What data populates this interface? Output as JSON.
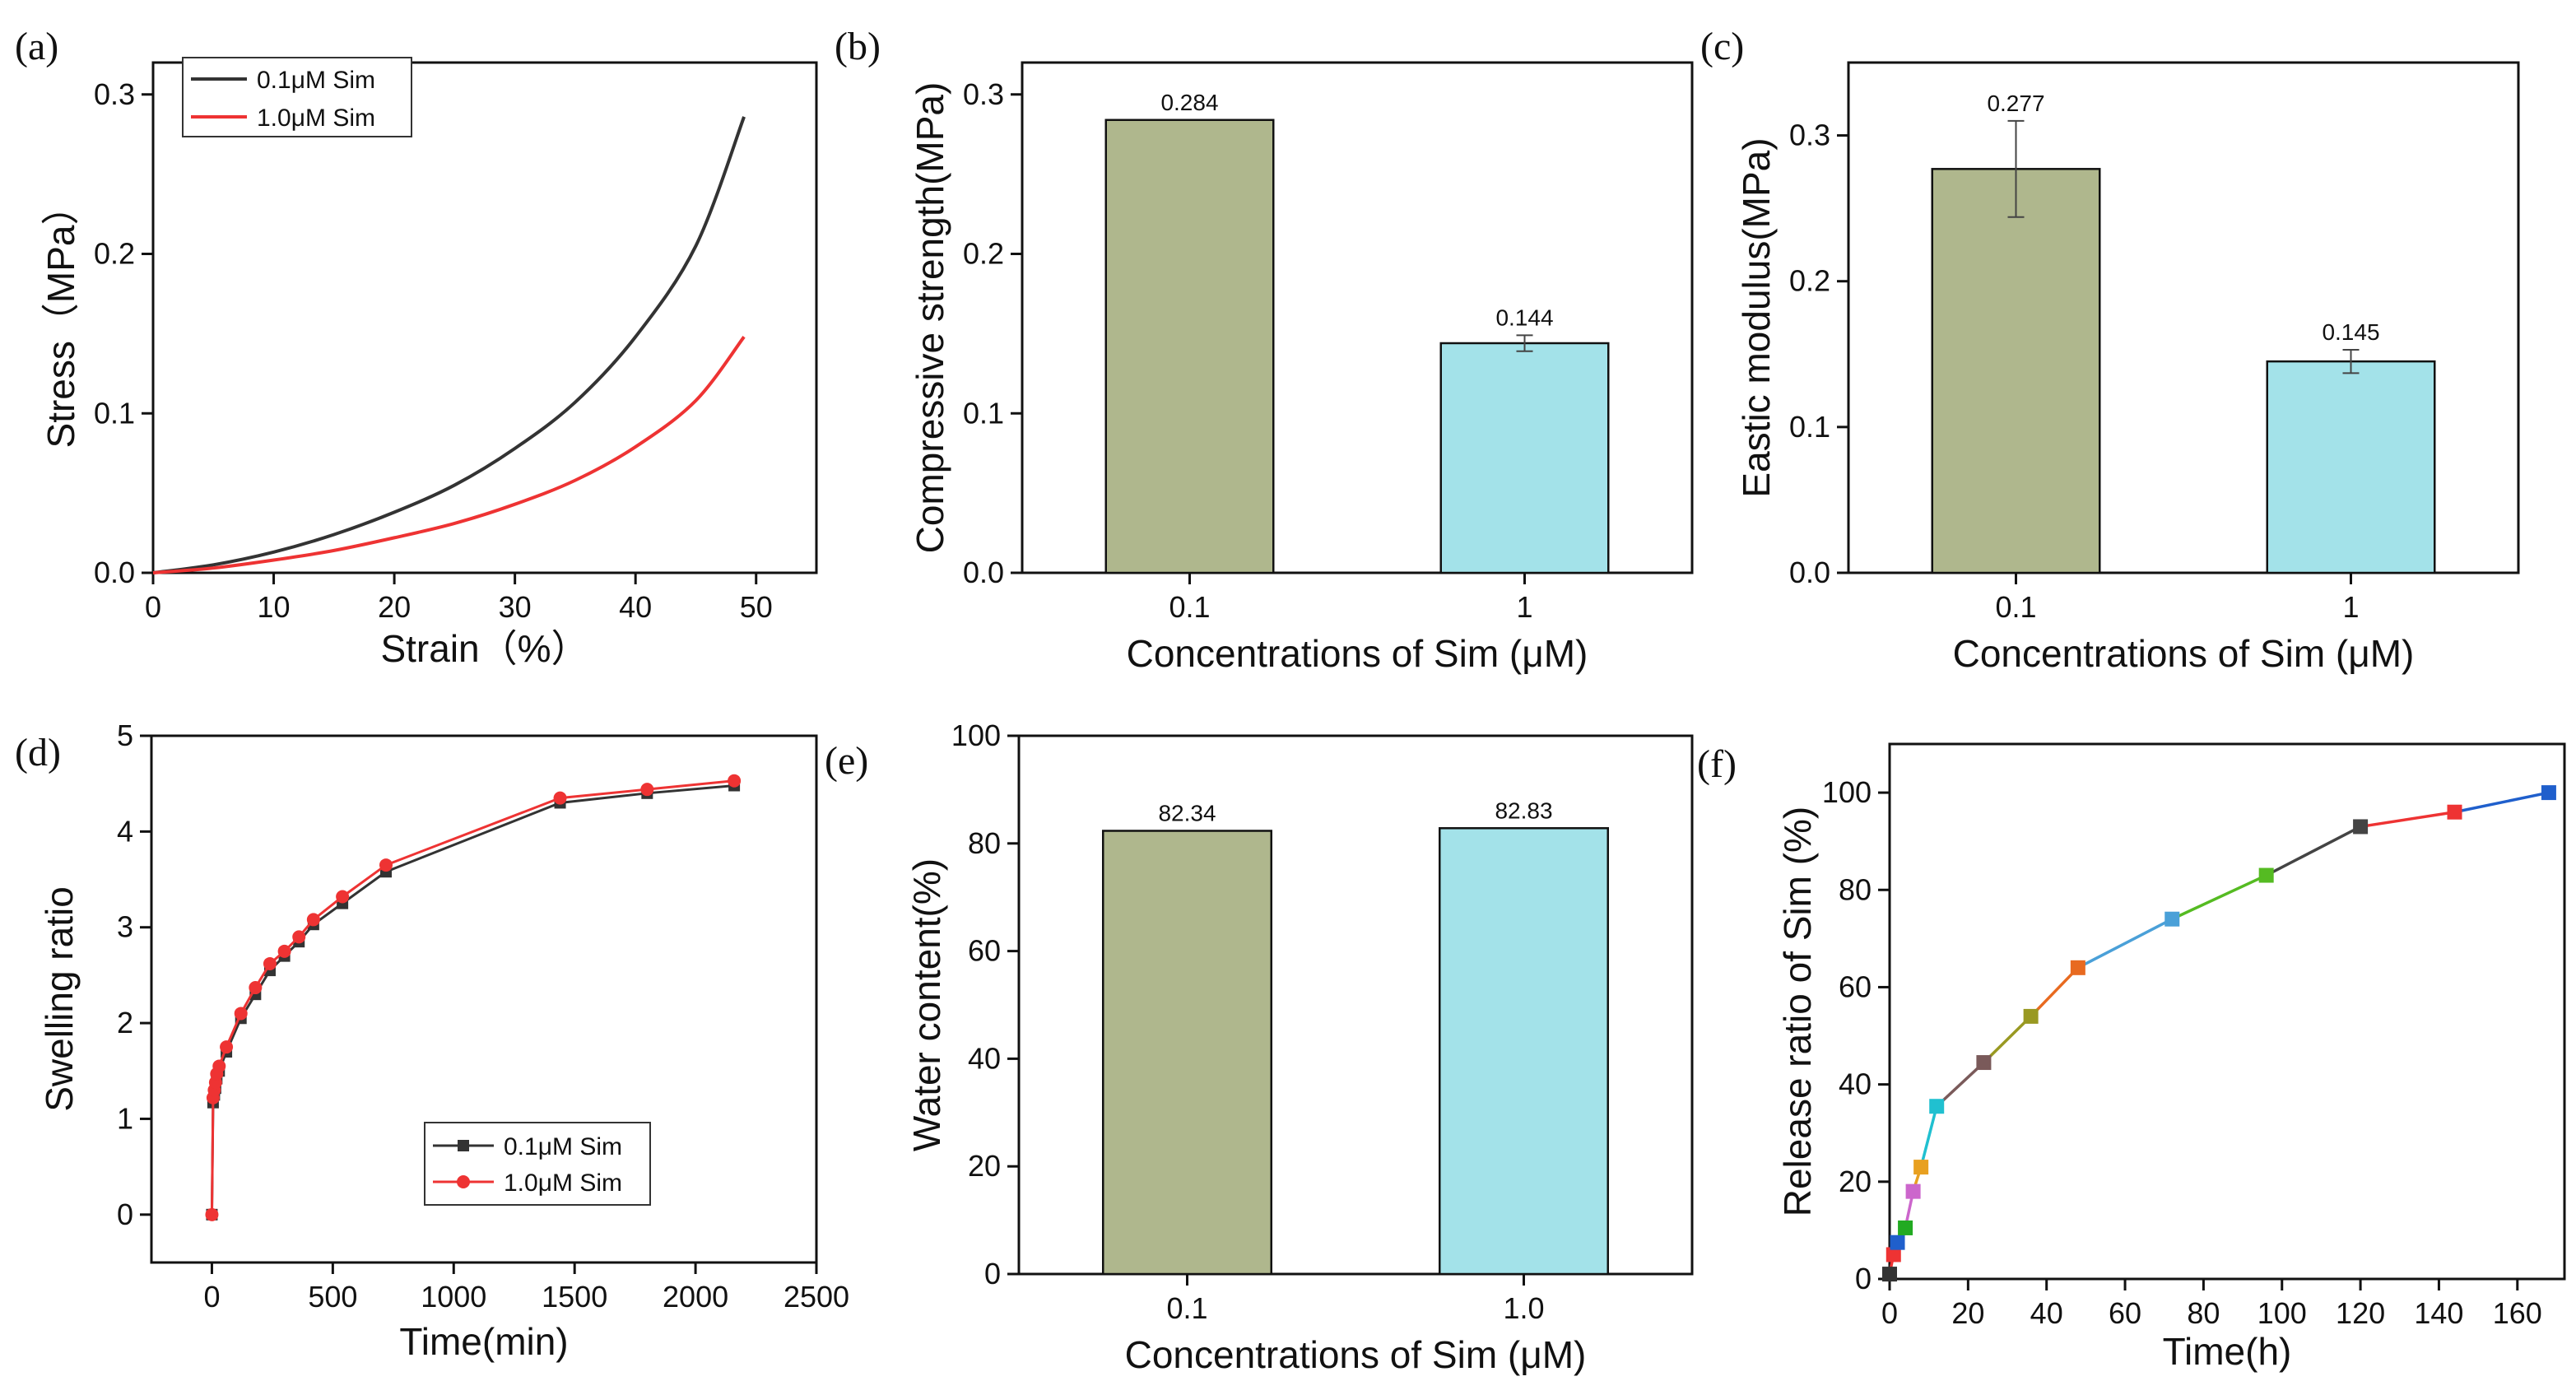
{
  "colors": {
    "black_series": "#333333",
    "red_series": "#ee3333",
    "bar_olive": "#afb78d",
    "bar_cyan": "#a3e2e9"
  },
  "chart_data": [
    {
      "panel_label": "(a)",
      "type": "line",
      "xlabel": "Strain（%）",
      "ylabel": "Stress（MPa）",
      "xlim": [
        0,
        55
      ],
      "ylim": [
        0,
        0.32
      ],
      "xticks": [
        "0",
        "10",
        "20",
        "30",
        "40",
        "50"
      ],
      "yticks": [
        "0.0",
        "0.1",
        "0.2",
        "0.3"
      ],
      "legend": "top-left",
      "series": [
        {
          "name": "0.1μM Sim",
          "color": "#333333",
          "x": [
            0,
            5,
            10,
            15,
            20,
            25,
            30,
            35,
            40,
            45,
            49
          ],
          "y": [
            0,
            0.005,
            0.013,
            0.024,
            0.038,
            0.055,
            0.078,
            0.107,
            0.148,
            0.205,
            0.286
          ]
        },
        {
          "name": "1.0μM Sim",
          "color": "#ee3333",
          "x": [
            0,
            5,
            10,
            15,
            20,
            25,
            30,
            35,
            40,
            45,
            49
          ],
          "y": [
            0,
            0.003,
            0.008,
            0.014,
            0.022,
            0.031,
            0.043,
            0.058,
            0.079,
            0.108,
            0.148
          ]
        }
      ]
    },
    {
      "panel_label": "(b)",
      "type": "bar",
      "xlabel": "Concentrations of Sim (μM)",
      "ylabel": "Compressive strength(MPa)",
      "categories": [
        "0.1",
        "1"
      ],
      "values": [
        0.284,
        0.144
      ],
      "errors": [
        0,
        0.005
      ],
      "value_labels": [
        "0.284",
        "0.144"
      ],
      "ylim": [
        0,
        0.32
      ],
      "yticks": [
        "0.0",
        "0.1",
        "0.2",
        "0.3"
      ]
    },
    {
      "panel_label": "(c)",
      "type": "bar",
      "xlabel": "Concentrations of Sim (μM)",
      "ylabel": "Eastic modulus(MPa)",
      "categories": [
        "0.1",
        "1"
      ],
      "values": [
        0.277,
        0.145
      ],
      "errors": [
        0.033,
        0.008
      ],
      "value_labels": [
        "0.277",
        "0.145"
      ],
      "ylim": [
        0,
        0.35
      ],
      "yticks": [
        "0.0",
        "0.1",
        "0.2",
        "0.3"
      ]
    },
    {
      "panel_label": "(d)",
      "type": "line",
      "xlabel": "Time(min)",
      "ylabel": "Swelling ratio",
      "xlim": [
        -250,
        2500
      ],
      "ylim": [
        -0.5,
        5
      ],
      "xticks": [
        "0",
        "500",
        "1000",
        "1500",
        "2000",
        "2500"
      ],
      "yticks": [
        "0",
        "1",
        "2",
        "3",
        "4",
        "5"
      ],
      "legend": "bottom-right",
      "series": [
        {
          "name": "0.1μM Sim",
          "color": "#333333",
          "marker": "square",
          "x": [
            0,
            5,
            10,
            15,
            20,
            30,
            60,
            120,
            180,
            240,
            300,
            360,
            420,
            540,
            720,
            1440,
            1800,
            2160
          ],
          "y": [
            0,
            1.17,
            1.25,
            1.32,
            1.42,
            1.5,
            1.7,
            2.05,
            2.3,
            2.55,
            2.7,
            2.85,
            3.03,
            3.25,
            3.58,
            4.3,
            4.4,
            4.48
          ]
        },
        {
          "name": "1.0μM Sim",
          "color": "#ee3333",
          "marker": "circle",
          "x": [
            0,
            5,
            10,
            15,
            20,
            30,
            60,
            120,
            180,
            240,
            300,
            360,
            420,
            540,
            720,
            1440,
            1800,
            2160
          ],
          "y": [
            0,
            1.22,
            1.3,
            1.38,
            1.47,
            1.55,
            1.75,
            2.1,
            2.37,
            2.62,
            2.75,
            2.9,
            3.08,
            3.32,
            3.65,
            4.35,
            4.44,
            4.53
          ]
        }
      ]
    },
    {
      "panel_label": "(e)",
      "type": "bar",
      "xlabel": "Concentrations of Sim (μM)",
      "ylabel": "Water content(%)",
      "categories": [
        "0.1",
        "1.0"
      ],
      "values": [
        82.34,
        82.83
      ],
      "errors": [
        0,
        0
      ],
      "value_labels": [
        "82.34",
        "82.83"
      ],
      "ylim": [
        0,
        100
      ],
      "yticks": [
        "0",
        "20",
        "40",
        "60",
        "80",
        "100"
      ]
    },
    {
      "panel_label": "(f)",
      "type": "line",
      "xlabel": "Time(h)",
      "ylabel": "Release ratio of Sim (%)",
      "xlim": [
        0,
        172
      ],
      "ylim": [
        0,
        110
      ],
      "xticks": [
        "0",
        "20",
        "40",
        "60",
        "80",
        "100",
        "120",
        "140",
        "160"
      ],
      "yticks": [
        "0",
        "20",
        "40",
        "60",
        "80",
        "100"
      ],
      "x": [
        0,
        1,
        2,
        4,
        6,
        8,
        12,
        24,
        36,
        48,
        72,
        96,
        120,
        144,
        168
      ],
      "y": [
        1,
        5,
        7.5,
        10.5,
        18,
        23,
        35.5,
        44.5,
        54,
        64,
        74,
        83,
        93,
        96,
        100
      ],
      "point_colors": [
        "#333333",
        "#ee3333",
        "#1f5fcc",
        "#22aa22",
        "#cc66cc",
        "#e8a020",
        "#20c0d0",
        "#7a5a5a",
        "#999922",
        "#e86a20",
        "#4aa0d8",
        "#55bb22",
        "#444444",
        "#ee3333",
        "#1f5fcc"
      ]
    }
  ]
}
